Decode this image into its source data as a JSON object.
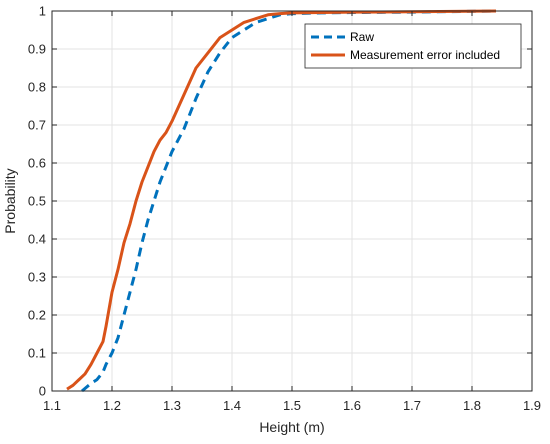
{
  "chart_data": {
    "type": "line",
    "xlabel": "Height (m)",
    "ylabel": "Probability",
    "xlim": [
      1.1,
      1.9
    ],
    "ylim": [
      0,
      1
    ],
    "xticks": [
      "1.1",
      "1.2",
      "1.3",
      "1.4",
      "1.5",
      "1.6",
      "1.7",
      "1.8",
      "1.9"
    ],
    "yticks": [
      "0",
      "0.1",
      "0.2",
      "0.3",
      "0.4",
      "0.5",
      "0.6",
      "0.7",
      "0.8",
      "0.9",
      "1"
    ],
    "grid": true,
    "legend_position": "top-right",
    "series": [
      {
        "name": "Raw",
        "color": "#0072BD",
        "style": "dashed",
        "x": [
          1.15,
          1.165,
          1.175,
          1.185,
          1.19,
          1.2,
          1.21,
          1.22,
          1.23,
          1.24,
          1.25,
          1.26,
          1.27,
          1.28,
          1.29,
          1.3,
          1.32,
          1.34,
          1.36,
          1.38,
          1.4,
          1.42,
          1.44,
          1.46,
          1.48,
          1.5,
          1.55,
          1.6,
          1.7,
          1.84
        ],
        "values": [
          0.0,
          0.02,
          0.03,
          0.05,
          0.07,
          0.1,
          0.14,
          0.2,
          0.26,
          0.32,
          0.39,
          0.45,
          0.5,
          0.55,
          0.59,
          0.63,
          0.69,
          0.77,
          0.84,
          0.89,
          0.93,
          0.95,
          0.97,
          0.98,
          0.99,
          0.993,
          0.995,
          0.996,
          0.997,
          1.0
        ]
      },
      {
        "name": "Measurement error included",
        "color": "#D95319",
        "style": "solid",
        "x": [
          1.125,
          1.135,
          1.145,
          1.155,
          1.165,
          1.175,
          1.185,
          1.19,
          1.2,
          1.21,
          1.22,
          1.23,
          1.24,
          1.25,
          1.26,
          1.27,
          1.28,
          1.29,
          1.3,
          1.32,
          1.34,
          1.36,
          1.38,
          1.4,
          1.42,
          1.44,
          1.46,
          1.48,
          1.5,
          1.55,
          1.6,
          1.7,
          1.84
        ],
        "values": [
          0.005,
          0.015,
          0.03,
          0.045,
          0.07,
          0.1,
          0.13,
          0.17,
          0.26,
          0.32,
          0.39,
          0.44,
          0.5,
          0.55,
          0.59,
          0.63,
          0.66,
          0.68,
          0.71,
          0.78,
          0.85,
          0.89,
          0.93,
          0.95,
          0.97,
          0.98,
          0.99,
          0.993,
          0.995,
          0.996,
          0.997,
          0.998,
          1.0
        ]
      }
    ]
  }
}
